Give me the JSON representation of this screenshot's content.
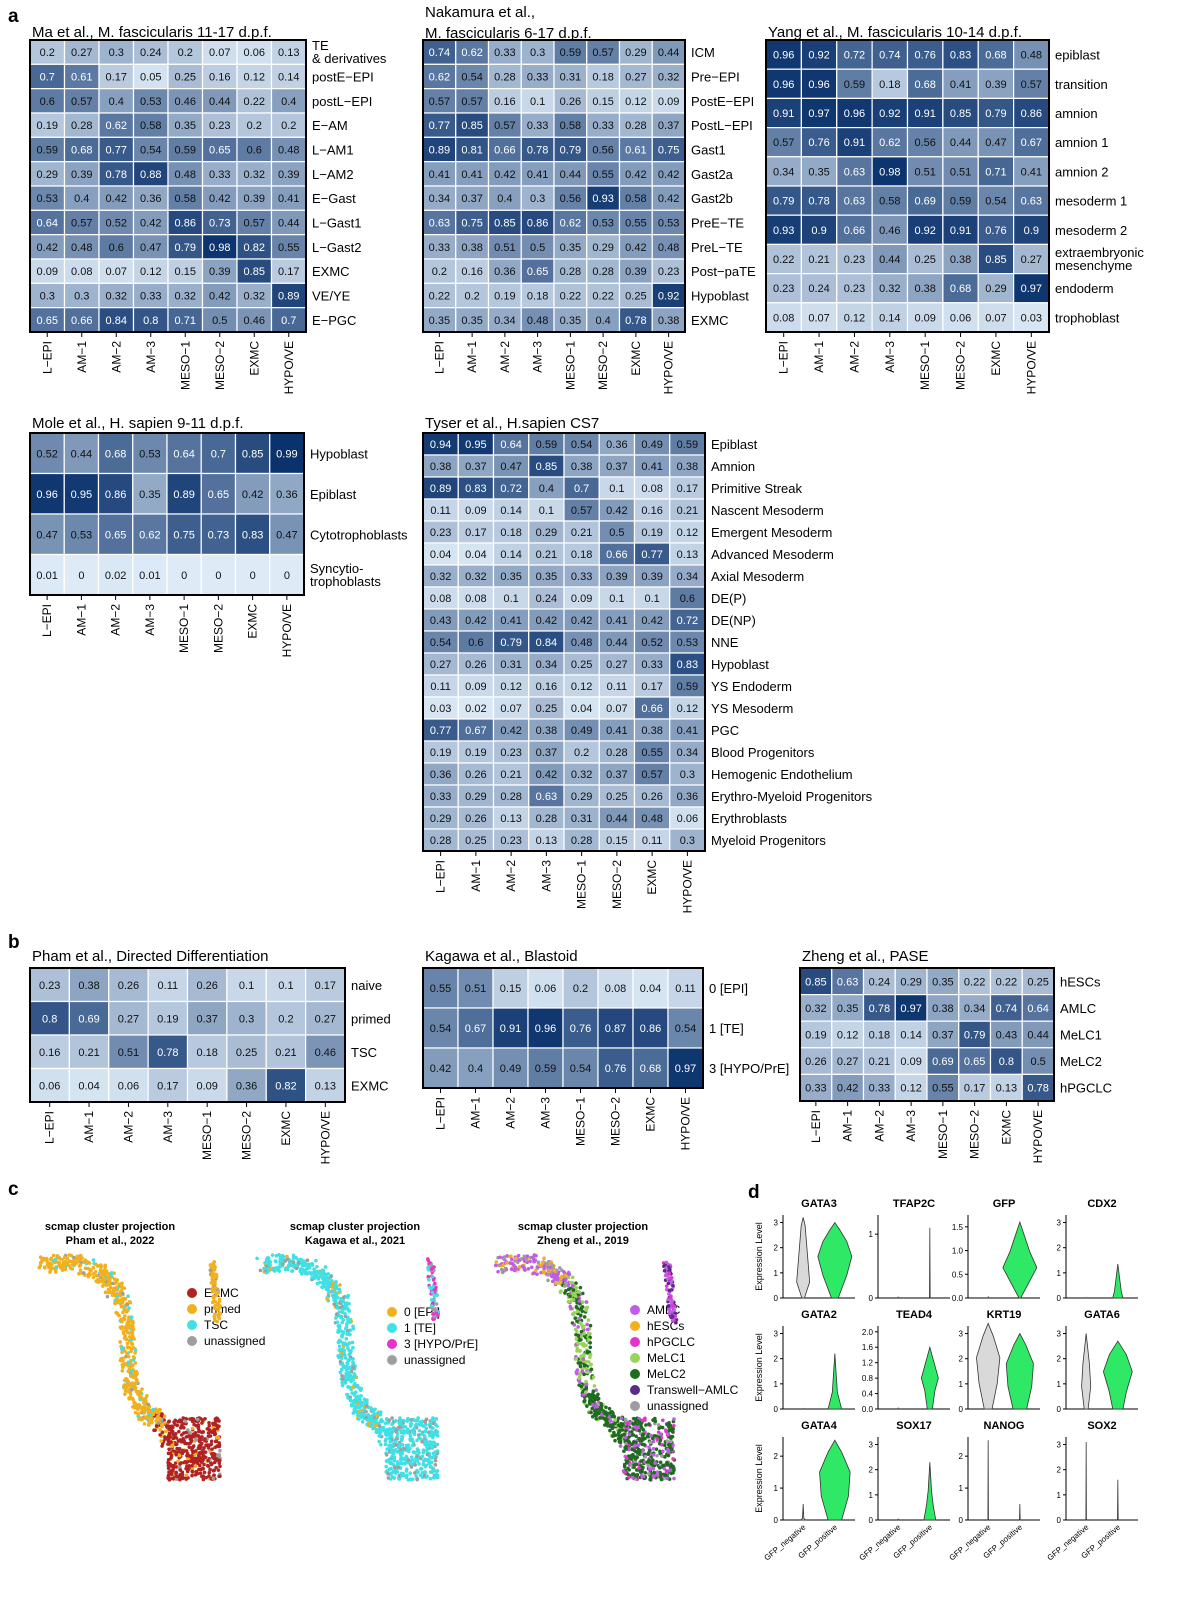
{
  "figure": {
    "panel_labels": [
      "a",
      "b",
      "c",
      "d"
    ]
  },
  "chart_data": [
    {
      "id": "ma",
      "type": "heatmap",
      "title": "Ma et al., M. fascicularis 11-17 d.p.f.",
      "title2": "",
      "x": [
        "L−EPI",
        "AM−1",
        "AM−2",
        "AM−3",
        "MESO−1",
        "MESO−2",
        "EXMC",
        "HYPO/VE"
      ],
      "y": [
        "TE & derivatives",
        "postE−EPI",
        "postL−EPI",
        "E−AM",
        "L−AM1",
        "L−AM2",
        "E−Gast",
        "L−Gast1",
        "L−Gast2",
        "EXMC",
        "VE/YE",
        "E−PGC"
      ],
      "values": [
        [
          0.2,
          0.27,
          0.3,
          0.24,
          0.2,
          0.07,
          0.06,
          0.13
        ],
        [
          0.7,
          0.61,
          0.17,
          0.05,
          0.25,
          0.16,
          0.12,
          0.14
        ],
        [
          0.6,
          0.57,
          0.4,
          0.53,
          0.46,
          0.44,
          0.22,
          0.4
        ],
        [
          0.19,
          0.28,
          0.62,
          0.58,
          0.35,
          0.23,
          0.2,
          0.2
        ],
        [
          0.59,
          0.68,
          0.77,
          0.54,
          0.59,
          0.65,
          0.6,
          0.48
        ],
        [
          0.29,
          0.39,
          0.78,
          0.88,
          0.48,
          0.33,
          0.32,
          0.39
        ],
        [
          0.53,
          0.4,
          0.42,
          0.36,
          0.58,
          0.42,
          0.39,
          0.41
        ],
        [
          0.64,
          0.57,
          0.52,
          0.42,
          0.86,
          0.73,
          0.57,
          0.44
        ],
        [
          0.42,
          0.48,
          0.6,
          0.47,
          0.79,
          0.98,
          0.82,
          0.55
        ],
        [
          0.09,
          0.08,
          0.07,
          0.12,
          0.15,
          0.39,
          0.85,
          0.17
        ],
        [
          0.3,
          0.3,
          0.32,
          0.33,
          0.32,
          0.42,
          0.32,
          0.89
        ],
        [
          0.65,
          0.66,
          0.84,
          0.8,
          0.71,
          0.5,
          0.46,
          0.7
        ]
      ]
    },
    {
      "id": "nakamura",
      "type": "heatmap",
      "title": "Nakamura et al.,",
      "title2": "M. fascicularis 6-17 d.p.f.",
      "x": [
        "L−EPI",
        "AM−1",
        "AM−2",
        "AM−3",
        "MESO−1",
        "MESO−2",
        "EXMC",
        "HYPO/VE"
      ],
      "y": [
        "ICM",
        "Pre−EPI",
        "PostE−EPI",
        "PostL−EPI",
        "Gast1",
        "Gast2a",
        "Gast2b",
        "PreE−TE",
        "PreL−TE",
        "Post−paTE",
        "Hypoblast",
        "EXMC"
      ],
      "values": [
        [
          0.74,
          0.62,
          0.33,
          0.3,
          0.59,
          0.57,
          0.29,
          0.44
        ],
        [
          0.62,
          0.54,
          0.28,
          0.33,
          0.31,
          0.18,
          0.27,
          0.32
        ],
        [
          0.57,
          0.57,
          0.16,
          0.1,
          0.26,
          0.15,
          0.12,
          0.09
        ],
        [
          0.77,
          0.85,
          0.57,
          0.33,
          0.58,
          0.33,
          0.28,
          0.37
        ],
        [
          0.89,
          0.81,
          0.66,
          0.78,
          0.79,
          0.56,
          0.61,
          0.75
        ],
        [
          0.41,
          0.41,
          0.42,
          0.41,
          0.44,
          0.55,
          0.42,
          0.42
        ],
        [
          0.34,
          0.37,
          0.4,
          0.3,
          0.56,
          0.93,
          0.58,
          0.42
        ],
        [
          0.63,
          0.75,
          0.85,
          0.86,
          0.62,
          0.53,
          0.55,
          0.53
        ],
        [
          0.33,
          0.38,
          0.51,
          0.5,
          0.35,
          0.29,
          0.42,
          0.48
        ],
        [
          0.2,
          0.16,
          0.36,
          0.65,
          0.28,
          0.28,
          0.39,
          0.23
        ],
        [
          0.22,
          0.2,
          0.19,
          0.18,
          0.22,
          0.22,
          0.25,
          0.92
        ],
        [
          0.35,
          0.35,
          0.34,
          0.48,
          0.35,
          0.4,
          0.78,
          0.38
        ]
      ]
    },
    {
      "id": "yang",
      "type": "heatmap",
      "title": "Yang et al., M. fascicularis 10-14 d.p.f.",
      "title2": "",
      "x": [
        "L−EPI",
        "AM−1",
        "AM−2",
        "AM−3",
        "MESO−1",
        "MESO−2",
        "EXMC",
        "HYPO/VE"
      ],
      "y": [
        "epiblast",
        "transition",
        "amnion",
        "amnion 1",
        "amnion 2",
        "mesoderm 1",
        "mesoderm 2",
        "extraembryonic mesenchyme",
        "endoderm",
        "trophoblast"
      ],
      "values": [
        [
          0.96,
          0.92,
          0.72,
          0.74,
          0.76,
          0.83,
          0.68,
          0.48
        ],
        [
          0.96,
          0.96,
          0.59,
          0.18,
          0.68,
          0.41,
          0.39,
          0.57
        ],
        [
          0.91,
          0.97,
          0.96,
          0.92,
          0.91,
          0.85,
          0.79,
          0.86
        ],
        [
          0.57,
          0.76,
          0.91,
          0.62,
          0.56,
          0.44,
          0.47,
          0.67
        ],
        [
          0.34,
          0.35,
          0.63,
          0.98,
          0.51,
          0.51,
          0.71,
          0.41
        ],
        [
          0.79,
          0.78,
          0.63,
          0.58,
          0.69,
          0.59,
          0.54,
          0.63
        ],
        [
          0.93,
          0.9,
          0.66,
          0.46,
          0.92,
          0.91,
          0.76,
          0.9
        ],
        [
          0.22,
          0.21,
          0.23,
          0.44,
          0.25,
          0.38,
          0.85,
          0.27
        ],
        [
          0.23,
          0.24,
          0.23,
          0.32,
          0.38,
          0.68,
          0.29,
          0.97
        ],
        [
          0.08,
          0.07,
          0.12,
          0.14,
          0.09,
          0.06,
          0.07,
          0.03
        ]
      ]
    },
    {
      "id": "mole",
      "type": "heatmap",
      "title": "Mole et al., H. sapien 9-11 d.p.f.",
      "title2": "",
      "x": [
        "L−EPI",
        "AM−1",
        "AM−2",
        "AM−3",
        "MESO−1",
        "MESO−2",
        "EXMC",
        "HYPO/VE"
      ],
      "y": [
        "Hypoblast",
        "Epiblast",
        "Cytotrophoblasts",
        "Syncytio- trophoblasts"
      ],
      "values": [
        [
          0.52,
          0.44,
          0.68,
          0.53,
          0.64,
          0.7,
          0.85,
          0.99
        ],
        [
          0.96,
          0.95,
          0.86,
          0.35,
          0.89,
          0.65,
          0.42,
          0.36
        ],
        [
          0.47,
          0.53,
          0.65,
          0.62,
          0.75,
          0.73,
          0.83,
          0.47
        ],
        [
          0.01,
          0,
          0.02,
          0.01,
          0,
          0,
          0,
          0
        ]
      ]
    },
    {
      "id": "tyser",
      "type": "heatmap",
      "title": "Tyser et al., H.sapien CS7",
      "title2": "",
      "x": [
        "L−EPI",
        "AM−1",
        "AM−2",
        "AM−3",
        "MESO−1",
        "MESO−2",
        "EXMC",
        "HYPO/VE"
      ],
      "y": [
        "Epiblast",
        "Amnion",
        "Primitive Streak",
        "Nascent Mesoderm",
        "Emergent Mesoderm",
        "Advanced Mesoderm",
        "Axial Mesoderm",
        "DE(P)",
        "DE(NP)",
        "NNE",
        "Hypoblast",
        "YS Endoderm",
        "YS Mesoderm",
        "PGC",
        "Blood Progenitors",
        "Hemogenic Endothelium",
        "Erythro-Myeloid Progenitors",
        "Erythroblasts",
        "Myeloid Progenitors"
      ],
      "values": [
        [
          0.94,
          0.95,
          0.64,
          0.59,
          0.54,
          0.36,
          0.49,
          0.59
        ],
        [
          0.38,
          0.37,
          0.47,
          0.85,
          0.38,
          0.37,
          0.41,
          0.38
        ],
        [
          0.89,
          0.83,
          0.72,
          0.4,
          0.7,
          0.1,
          0.08,
          0.17
        ],
        [
          0.11,
          0.09,
          0.14,
          0.1,
          0.57,
          0.42,
          0.16,
          0.21
        ],
        [
          0.23,
          0.17,
          0.18,
          0.29,
          0.21,
          0.5,
          0.19,
          0.12
        ],
        [
          0.04,
          0.04,
          0.14,
          0.21,
          0.18,
          0.66,
          0.77,
          0.13
        ],
        [
          0.32,
          0.32,
          0.35,
          0.35,
          0.33,
          0.39,
          0.39,
          0.34
        ],
        [
          0.08,
          0.08,
          0.1,
          0.24,
          0.09,
          0.1,
          0.1,
          0.6
        ],
        [
          0.43,
          0.42,
          0.41,
          0.42,
          0.42,
          0.41,
          0.42,
          0.72
        ],
        [
          0.54,
          0.6,
          0.79,
          0.84,
          0.48,
          0.44,
          0.52,
          0.53
        ],
        [
          0.27,
          0.26,
          0.31,
          0.34,
          0.25,
          0.27,
          0.33,
          0.83
        ],
        [
          0.11,
          0.09,
          0.12,
          0.16,
          0.12,
          0.11,
          0.17,
          0.59
        ],
        [
          0.03,
          0.02,
          0.07,
          0.25,
          0.04,
          0.07,
          0.66,
          0.12
        ],
        [
          0.77,
          0.67,
          0.42,
          0.38,
          0.49,
          0.41,
          0.38,
          0.41
        ],
        [
          0.19,
          0.19,
          0.23,
          0.37,
          0.2,
          0.28,
          0.55,
          0.34
        ],
        [
          0.36,
          0.26,
          0.21,
          0.42,
          0.32,
          0.37,
          0.57,
          0.3
        ],
        [
          0.33,
          0.29,
          0.28,
          0.63,
          0.29,
          0.25,
          0.26,
          0.36
        ],
        [
          0.29,
          0.26,
          0.13,
          0.28,
          0.31,
          0.44,
          0.48,
          0.06
        ],
        [
          0.28,
          0.25,
          0.23,
          0.13,
          0.28,
          0.15,
          0.11,
          0.3
        ]
      ]
    },
    {
      "id": "pham",
      "type": "heatmap",
      "title": "Pham et al., Directed Differentiation",
      "title2": "",
      "x": [
        "L−EPI",
        "AM−1",
        "AM−2",
        "AM−3",
        "MESO−1",
        "MESO−2",
        "EXMC",
        "HYPO/VE"
      ],
      "y": [
        "naive",
        "primed",
        "TSC",
        "EXMC"
      ],
      "values": [
        [
          0.23,
          0.38,
          0.26,
          0.11,
          0.26,
          0.1,
          0.1,
          0.17
        ],
        [
          0.8,
          0.69,
          0.27,
          0.19,
          0.37,
          0.3,
          0.2,
          0.27
        ],
        [
          0.16,
          0.21,
          0.51,
          0.78,
          0.18,
          0.25,
          0.21,
          0.46
        ],
        [
          0.06,
          0.04,
          0.06,
          0.17,
          0.09,
          0.36,
          0.82,
          0.13
        ]
      ]
    },
    {
      "id": "kagawa",
      "type": "heatmap",
      "title": "Kagawa et al., Blastoid",
      "title2": "",
      "x": [
        "L−EPI",
        "AM−1",
        "AM−2",
        "AM−3",
        "MESO−1",
        "MESO−2",
        "EXMC",
        "HYPO/VE"
      ],
      "y": [
        "0 [EPI]",
        "1 [TE]",
        "3 [HYPO/PrE]"
      ],
      "values": [
        [
          0.55,
          0.51,
          0.15,
          0.06,
          0.2,
          0.08,
          0.04,
          0.11
        ],
        [
          0.54,
          0.67,
          0.91,
          0.96,
          0.76,
          0.87,
          0.86,
          0.54
        ],
        [
          0.42,
          0.4,
          0.49,
          0.59,
          0.54,
          0.76,
          0.68,
          0.97
        ]
      ]
    },
    {
      "id": "zheng",
      "type": "heatmap",
      "title": "Zheng et al., PASE",
      "title2": "",
      "x": [
        "L−EPI",
        "AM−1",
        "AM−2",
        "AM−3",
        "MESO−1",
        "MESO−2",
        "EXMC",
        "HYPO/VE"
      ],
      "y": [
        "hESCs",
        "AMLC",
        "MeLC1",
        "MeLC2",
        "hPGCLC"
      ],
      "values": [
        [
          0.85,
          0.63,
          0.24,
          0.29,
          0.35,
          0.22,
          0.22,
          0.25
        ],
        [
          0.32,
          0.35,
          0.78,
          0.97,
          0.38,
          0.34,
          0.74,
          0.64
        ],
        [
          0.19,
          0.12,
          0.18,
          0.14,
          0.37,
          0.79,
          0.43,
          0.44
        ],
        [
          0.26,
          0.27,
          0.21,
          0.09,
          0.69,
          0.65,
          0.8,
          0.5
        ],
        [
          0.33,
          0.42,
          0.33,
          0.12,
          0.55,
          0.17,
          0.13,
          0.78
        ]
      ]
    },
    {
      "id": "umap_pham",
      "type": "scatter",
      "title": "scmap cluster projection",
      "title2": "Pham et al., 2022",
      "legend": [
        {
          "label": "EXMC",
          "color": "#b22222"
        },
        {
          "label": "primed",
          "color": "#f2b01e"
        },
        {
          "label": "TSC",
          "color": "#3fe0e6"
        },
        {
          "label": "unassigned",
          "color": "#9e9e9e"
        }
      ]
    },
    {
      "id": "umap_kagawa",
      "type": "scatter",
      "title": "scmap cluster projection",
      "title2": "Kagawa et al., 2021",
      "legend": [
        {
          "label": "0 [EPI]",
          "color": "#f2b01e"
        },
        {
          "label": "1 [TE]",
          "color": "#3fe0e6"
        },
        {
          "label": "3 [HYPO/PrE]",
          "color": "#e633c8"
        },
        {
          "label": "unassigned",
          "color": "#9e9e9e"
        }
      ]
    },
    {
      "id": "umap_zheng",
      "type": "scatter",
      "title": "scmap cluster projection",
      "title2": "Zheng et al., 2019",
      "legend": [
        {
          "label": "AMLC",
          "color": "#c15ce6"
        },
        {
          "label": "hESCs",
          "color": "#f2b01e"
        },
        {
          "label": "hPGCLC",
          "color": "#e633c8"
        },
        {
          "label": "MeLC1",
          "color": "#9ad35c"
        },
        {
          "label": "MeLC2",
          "color": "#1f6b1f"
        },
        {
          "label": "Transwell−AMLC",
          "color": "#5b2a86"
        },
        {
          "label": "unassigned",
          "color": "#9e9e9e"
        }
      ]
    },
    {
      "id": "violins",
      "type": "violin",
      "ylabel": "Expression Level",
      "categories": [
        "GFP_negative",
        "GFP_positive"
      ],
      "colors": {
        "GFP_negative": "#d9d9d9",
        "GFP_positive": "#2ee866"
      },
      "genes": [
        {
          "name": "GATA3",
          "ticks": [
            "0",
            "1",
            "2",
            "3"
          ],
          "ymax": 3.3
        },
        {
          "name": "TFAP2C",
          "ticks": [
            "0",
            "1"
          ],
          "ymax": 1.3
        },
        {
          "name": "GFP",
          "ticks": [
            "0.0",
            "0.5",
            "1.0",
            "1.5"
          ],
          "ymax": 1.75
        },
        {
          "name": "CDX2",
          "ticks": [
            "0",
            "1",
            "2",
            "3"
          ],
          "ymax": 3.3
        },
        {
          "name": "GATA2",
          "ticks": [
            "0",
            "1",
            "2",
            "3"
          ],
          "ymax": 3.3
        },
        {
          "name": "TEAD4",
          "ticks": [
            "0.0",
            "0.4",
            "0.8",
            "1.2",
            "1.6",
            "2.0"
          ],
          "ymax": 2.15
        },
        {
          "name": "KRT19",
          "ticks": [
            "0",
            "1",
            "2",
            "3"
          ],
          "ymax": 3.3
        },
        {
          "name": "GATA6",
          "ticks": [
            "0",
            "1",
            "2",
            "3"
          ],
          "ymax": 3.3
        },
        {
          "name": "GATA4",
          "ticks": [
            "0",
            "1",
            "2"
          ],
          "ymax": 2.6
        },
        {
          "name": "SOX17",
          "ticks": [
            "0",
            "1",
            "2",
            "3"
          ],
          "ymax": 3.3
        },
        {
          "name": "NANOG",
          "ticks": [
            "0",
            "1",
            "2"
          ],
          "ymax": 2.6
        },
        {
          "name": "SOX2",
          "ticks": [
            "0",
            "1",
            "2",
            "3"
          ],
          "ymax": 3.3
        }
      ]
    }
  ]
}
